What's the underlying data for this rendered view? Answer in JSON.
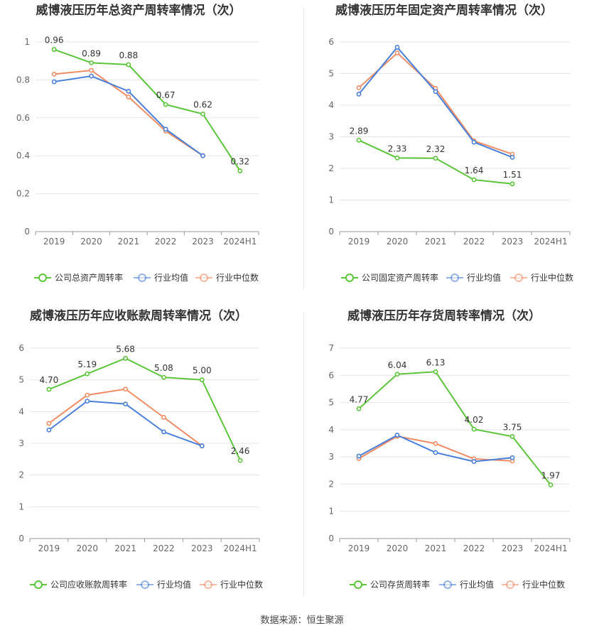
{
  "colors": {
    "company": "#5cc43a",
    "avg": "#4a7fd9",
    "median": "#f08c64",
    "grid": "#e4e4e4",
    "axis": "#999999"
  },
  "source": "数据来源：恒生聚源",
  "chart_data": [
    {
      "type": "line",
      "title": "威博液压历年总资产周转率情况（次）",
      "categories": [
        "2019",
        "2020",
        "2021",
        "2022",
        "2023",
        "2024H1"
      ],
      "ylim": [
        0,
        1
      ],
      "yticks": [
        "0",
        "0.2",
        "0.4",
        "0.6",
        "0.8",
        "1"
      ],
      "ytick_values": [
        0,
        0.2,
        0.4,
        0.6,
        0.8,
        1
      ],
      "series": [
        {
          "name": "公司总资产周转率",
          "role": "company",
          "values": [
            0.96,
            0.89,
            0.88,
            0.67,
            0.62,
            0.32
          ],
          "labels": [
            "0.96",
            "0.89",
            "0.88",
            "0.67",
            "0.62",
            "0.32"
          ]
        },
        {
          "name": "行业均值",
          "role": "avg",
          "values": [
            0.79,
            0.82,
            0.74,
            0.54,
            0.4,
            null
          ]
        },
        {
          "name": "行业中位数",
          "role": "median",
          "values": [
            0.83,
            0.85,
            0.71,
            0.53,
            0.4,
            null
          ]
        }
      ]
    },
    {
      "type": "line",
      "title": "威博液压历年固定资产周转率情况（次）",
      "categories": [
        "2019",
        "2020",
        "2021",
        "2022",
        "2023",
        "2024H1"
      ],
      "ylim": [
        0,
        6
      ],
      "yticks": [
        "0",
        "1",
        "2",
        "3",
        "4",
        "5",
        "6"
      ],
      "ytick_values": [
        0,
        1,
        2,
        3,
        4,
        5,
        6
      ],
      "series": [
        {
          "name": "公司固定资产周转率",
          "role": "company",
          "values": [
            2.89,
            2.33,
            2.32,
            1.64,
            1.51,
            null
          ],
          "labels": [
            "2.89",
            "2.33",
            "2.32",
            "1.64",
            "1.51",
            ""
          ]
        },
        {
          "name": "行业均值",
          "role": "avg",
          "values": [
            4.35,
            5.83,
            4.43,
            2.83,
            2.35,
            null
          ]
        },
        {
          "name": "行业中位数",
          "role": "median",
          "values": [
            4.55,
            5.65,
            4.53,
            2.87,
            2.45,
            null
          ]
        }
      ]
    },
    {
      "type": "line",
      "title": "威博液压历年应收账款周转率情况（次）",
      "categories": [
        "2019",
        "2020",
        "2021",
        "2022",
        "2023",
        "2024H1"
      ],
      "ylim": [
        0,
        6
      ],
      "yticks": [
        "0",
        "1",
        "2",
        "3",
        "4",
        "5",
        "6"
      ],
      "ytick_values": [
        0,
        1,
        2,
        3,
        4,
        5,
        6
      ],
      "series": [
        {
          "name": "公司应收账款周转率",
          "role": "company",
          "values": [
            4.7,
            5.19,
            5.68,
            5.08,
            5.0,
            2.46
          ],
          "labels": [
            "4.70",
            "5.19",
            "5.68",
            "5.08",
            "5.00",
            "2.46"
          ]
        },
        {
          "name": "行业均值",
          "role": "avg",
          "values": [
            3.42,
            4.33,
            4.24,
            3.36,
            2.92,
            null
          ]
        },
        {
          "name": "行业中位数",
          "role": "median",
          "values": [
            3.63,
            4.52,
            4.71,
            3.82,
            2.92,
            null
          ]
        }
      ]
    },
    {
      "type": "line",
      "title": "威博液压历年存货周转率情况（次）",
      "categories": [
        "2019",
        "2020",
        "2021",
        "2022",
        "2023",
        "2024H1"
      ],
      "ylim": [
        0,
        7
      ],
      "yticks": [
        "0",
        "1",
        "2",
        "3",
        "4",
        "5",
        "6",
        "7"
      ],
      "ytick_values": [
        0,
        1,
        2,
        3,
        4,
        5,
        6,
        7
      ],
      "series": [
        {
          "name": "公司存货周转率",
          "role": "company",
          "values": [
            4.77,
            6.04,
            6.13,
            4.02,
            3.75,
            1.97
          ],
          "labels": [
            "4.77",
            "6.04",
            "6.13",
            "4.02",
            "3.75",
            "1.97"
          ]
        },
        {
          "name": "行业均值",
          "role": "avg",
          "values": [
            3.03,
            3.8,
            3.16,
            2.83,
            2.97,
            null
          ]
        },
        {
          "name": "行业中位数",
          "role": "median",
          "values": [
            2.94,
            3.76,
            3.49,
            2.93,
            2.85,
            null
          ]
        }
      ]
    }
  ]
}
